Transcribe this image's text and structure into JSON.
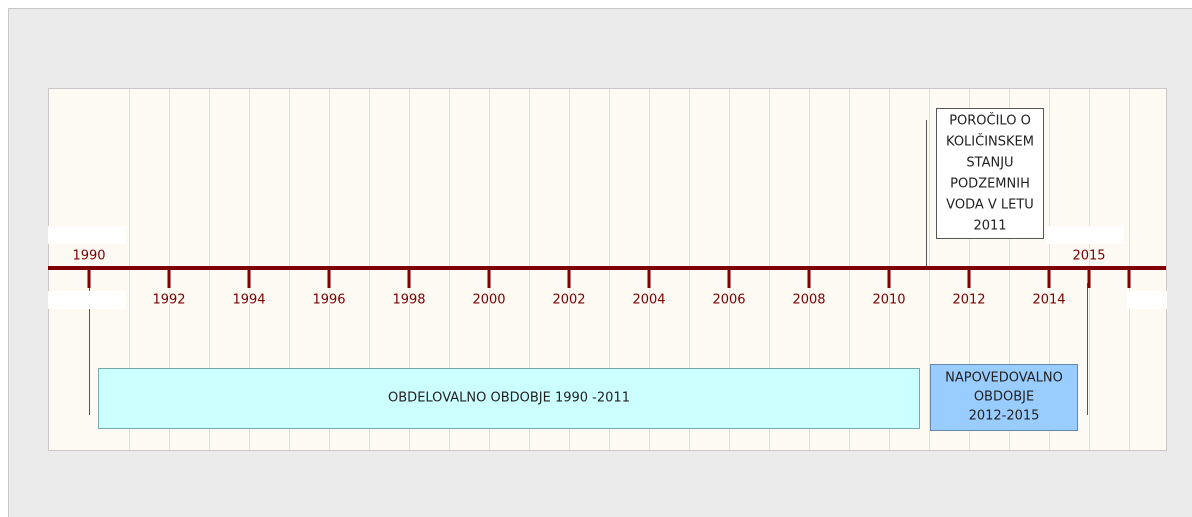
{
  "axis": {
    "start": 1990,
    "end": 2015,
    "ticks": [
      1992,
      1994,
      1996,
      1998,
      2000,
      2002,
      2004,
      2006,
      2008,
      2010,
      2012,
      2014
    ]
  },
  "event": {
    "year": 2011,
    "lines": [
      "POROČILO O",
      "KOLIČINSKEM",
      "STANJU",
      "PODZEMNIH",
      "VODA V LETU",
      "2011"
    ]
  },
  "periods": [
    {
      "lines": [
        "OBDELOVALNO OBDOBJE 1990 -2011"
      ]
    },
    {
      "lines": [
        "NAPOVEDOVALNO",
        "OBDOBJE",
        "2012-2015"
      ]
    }
  ]
}
